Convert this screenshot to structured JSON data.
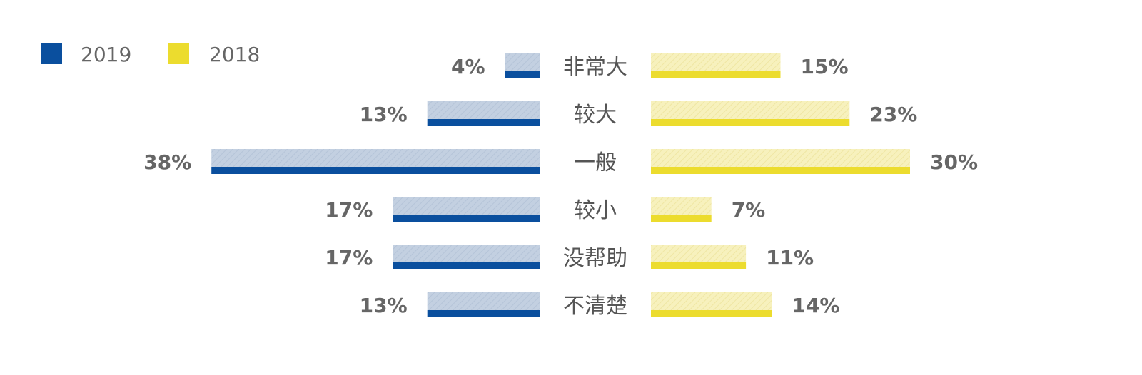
{
  "chart_data": {
    "type": "bar",
    "orientation": "diverging-horizontal",
    "categories": [
      "非常大",
      "较大",
      "一般",
      "较小",
      "没帮助",
      "不清楚"
    ],
    "series": [
      {
        "name": "2019",
        "side": "left",
        "values": [
          4,
          13,
          38,
          17,
          17,
          13
        ],
        "labels": [
          "4%",
          "13%",
          "38%",
          "17%",
          "17%",
          "13%"
        ],
        "color": "#0a4f9e",
        "light_color": "#c3d0e1"
      },
      {
        "name": "2018",
        "side": "right",
        "values": [
          15,
          23,
          30,
          7,
          11,
          14
        ],
        "labels": [
          "15%",
          "23%",
          "30%",
          "7%",
          "11%",
          "14%"
        ],
        "color": "#ecdc2e",
        "light_color": "#f7f1bd"
      }
    ],
    "value_unit": "%",
    "grid": false,
    "legend": "top-left"
  }
}
